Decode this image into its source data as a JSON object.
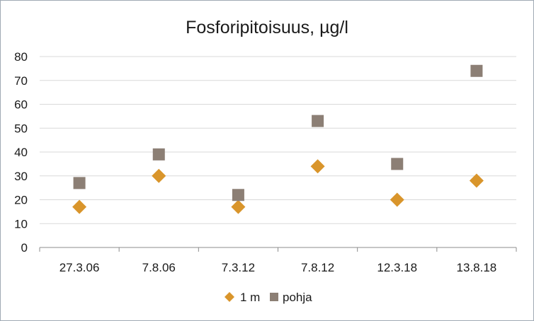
{
  "chart_data": {
    "type": "scatter",
    "title": "Fosforipitoisuus, µg/l",
    "categories": [
      "27.3.06",
      "7.8.06",
      "7.3.12",
      "7.8.12",
      "12.3.18",
      "13.8.18"
    ],
    "ylim": [
      0,
      80
    ],
    "yticks": [
      0,
      10,
      20,
      30,
      40,
      50,
      60,
      70,
      80
    ],
    "grid": true,
    "legend_position": "bottom",
    "series": [
      {
        "name": "1 m",
        "values": [
          17,
          30,
          17,
          34,
          20,
          28
        ],
        "color": "#d9952b",
        "marker": "diamond"
      },
      {
        "name": "pohja",
        "values": [
          27,
          39,
          22,
          53,
          35,
          74
        ],
        "color": "#8c7f75",
        "marker": "square"
      }
    ]
  }
}
